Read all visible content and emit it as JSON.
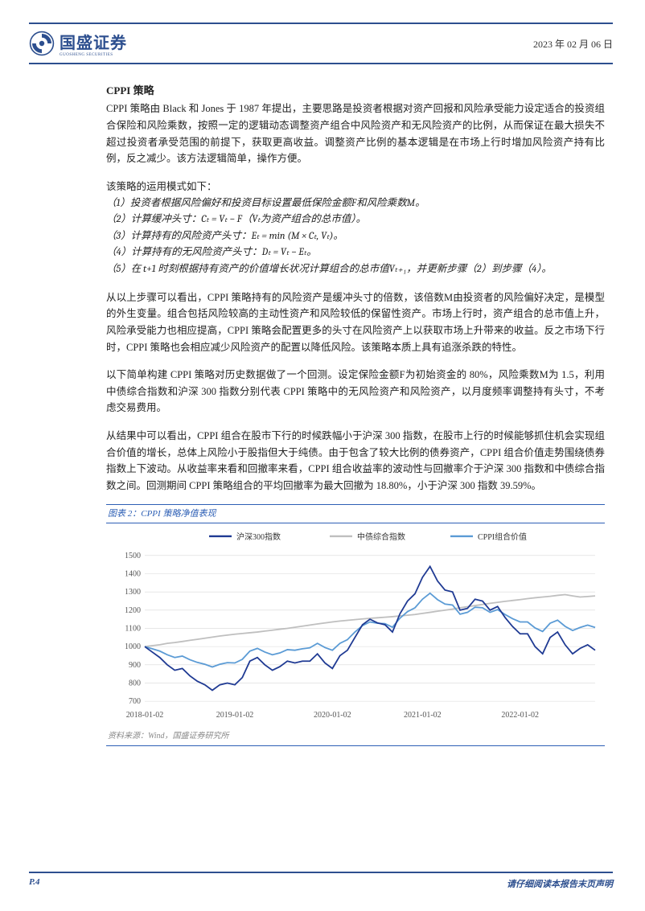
{
  "header": {
    "logo_cn": "国盛证券",
    "logo_en": "GUOSHENG SECURITIES",
    "date": "2023 年 02 月 06 日"
  },
  "section": {
    "title": "CPPI 策略",
    "p1": "CPPI 策略由 Black 和 Jones 于 1987 年提出，主要思路是投资者根据对资产回报和风险承受能力设定适合的投资组合保险和风险乘数，按照一定的逻辑动态调整资产组合中风险资产和无风险资产的比例，从而保证在最大损失不超过投资者承受范围的前提下，获取更高收益。调整资产比例的基本逻辑是在市场上行时增加风险资产持有比例，反之减少。该方法逻辑简单，操作方便。",
    "p2_intro": "该策略的运用模式如下：",
    "steps": [
      "（1）投资者根据风险偏好和投资目标设置最低保险金额F和风险乘数M。",
      "（2）计算缓冲头寸：Cₜ = Vₜ − F（Vₜ为资产组合的总市值）。",
      "（3）计算持有的风险资产头寸：Eₜ = min (M × Cₜ, Vₜ)。",
      "（4）计算持有的无风险资产头寸：Dₜ = Vₜ − Eₜ。",
      "（5）在 t+1 时刻根据持有资产的价值增长状况计算组合的总市值Vₜ₊₁，并更新步骤（2）到步骤（4）。"
    ],
    "p3": "从以上步骤可以看出，CPPI 策略持有的风险资产是缓冲头寸的倍数，该倍数M由投资者的风险偏好决定，是模型的外生变量。组合包括风险较高的主动性资产和风险较低的保留性资产。市场上行时，资产组合的总市值上升，风险承受能力也相应提高，CPPI 策略会配置更多的头寸在风险资产上以获取市场上升带来的收益。反之市场下行时，CPPI 策略也会相应减少风险资产的配置以降低风险。该策略本质上具有追涨杀跌的特性。",
    "p4": "以下简单构建 CPPI 策略对历史数据做了一个回测。设定保险金额F为初始资金的 80%，风险乘数M为 1.5，利用中债综合指数和沪深 300 指数分别代表 CPPI 策略中的无风险资产和风险资产，以月度频率调整持有头寸，不考虑交易费用。",
    "p5": "从结果中可以看出，CPPI 组合在股市下行的时候跌幅小于沪深 300 指数，在股市上行的时候能够抓住机会实现组合价值的增长，总体上风险小于股指但大于纯债。由于包含了较大比例的债券资产，CPPI 组合价值走势围绕债券指数上下波动。从收益率来看和回撤率来看，CPPI 组合收益率的波动性与回撤率介于沪深 300 指数和中债综合指数之间。回测期间 CPPI 策略组合的平均回撤率为最大回撤为 18.80%，小于沪深 300 指数 39.59%。"
  },
  "chart": {
    "caption": "图表 2：CPPI 策略净值表现",
    "source": "资料来源：Wind，国盛证券研究所",
    "legend": [
      "沪深300指数",
      "中债综合指数",
      "CPPI组合价值"
    ],
    "colors": [
      "#1f3a93",
      "#bfbfbf",
      "#5b9bd5"
    ],
    "background_color": "#ffffff",
    "grid_color": "#d9d9d9",
    "axis_color": "#555555",
    "ylim": [
      700,
      1500
    ],
    "ytick_step": 100,
    "x_labels": [
      "2018-01-02",
      "2019-01-02",
      "2020-01-02",
      "2021-01-02",
      "2022-01-02"
    ],
    "label_fontsize": 10,
    "line_width": 1.8,
    "series_hs300": [
      1000,
      970,
      940,
      900,
      870,
      880,
      840,
      810,
      790,
      760,
      790,
      800,
      790,
      830,
      920,
      940,
      900,
      870,
      890,
      920,
      910,
      920,
      920,
      960,
      910,
      880,
      950,
      980,
      1050,
      1120,
      1150,
      1130,
      1120,
      1080,
      1180,
      1250,
      1290,
      1380,
      1440,
      1360,
      1310,
      1300,
      1200,
      1210,
      1260,
      1250,
      1200,
      1220,
      1160,
      1110,
      1070,
      1070,
      1000,
      960,
      1050,
      1080,
      1010,
      960,
      990,
      1010,
      980
    ],
    "series_bond": [
      1000,
      1005,
      1010,
      1018,
      1022,
      1028,
      1034,
      1040,
      1046,
      1052,
      1058,
      1063,
      1068,
      1072,
      1076,
      1080,
      1085,
      1090,
      1095,
      1100,
      1106,
      1112,
      1118,
      1124,
      1130,
      1135,
      1140,
      1144,
      1148,
      1152,
      1155,
      1158,
      1161,
      1164,
      1168,
      1172,
      1176,
      1182,
      1188,
      1194,
      1200,
      1206,
      1213,
      1219,
      1225,
      1231,
      1237,
      1243,
      1248,
      1253,
      1258,
      1263,
      1268,
      1272,
      1276,
      1281,
      1285,
      1278,
      1272,
      1275,
      1278
    ],
    "series_cppi": [
      1000,
      988,
      975,
      955,
      940,
      948,
      928,
      913,
      903,
      888,
      903,
      912,
      910,
      930,
      975,
      990,
      970,
      955,
      965,
      983,
      980,
      988,
      993,
      1018,
      995,
      980,
      1018,
      1038,
      1080,
      1115,
      1135,
      1128,
      1126,
      1106,
      1156,
      1192,
      1213,
      1260,
      1293,
      1258,
      1233,
      1228,
      1178,
      1188,
      1216,
      1213,
      1188,
      1203,
      1176,
      1153,
      1135,
      1135,
      1102,
      1083,
      1128,
      1145,
      1111,
      1088,
      1105,
      1118,
      1105
    ]
  },
  "footer": {
    "page": "P.4",
    "note": "请仔细阅读本报告末页声明"
  }
}
